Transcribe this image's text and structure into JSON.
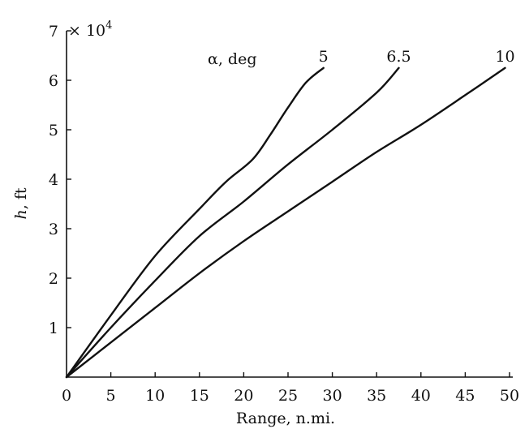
{
  "chart_data": {
    "type": "line",
    "title": "",
    "xlabel": "Range, n.mi.",
    "ylabel_italic": "h",
    "ylabel_rest": ", ft",
    "xlim": [
      0,
      50
    ],
    "ylim": [
      0,
      7
    ],
    "x_ticks": [
      "0",
      "5",
      "10",
      "15",
      "20",
      "25",
      "30",
      "35",
      "40",
      "45",
      "50"
    ],
    "y_ticks": [
      "1",
      "2",
      "3",
      "4",
      "5",
      "6",
      "7"
    ],
    "y_exponent": {
      "base": "× 10",
      "power": "4"
    },
    "series_header": "α, deg",
    "grid": false,
    "series": [
      {
        "name": "5",
        "x": [
          0,
          5,
          10,
          15,
          18,
          21,
          23,
          25,
          27,
          29
        ],
        "y": [
          0,
          1.25,
          2.45,
          3.4,
          3.95,
          4.4,
          4.9,
          5.45,
          5.95,
          6.25
        ]
      },
      {
        "name": "6.5",
        "x": [
          0,
          5,
          10,
          15,
          20,
          25,
          30,
          35,
          37.5
        ],
        "y": [
          0,
          1.0,
          1.95,
          2.85,
          3.55,
          4.3,
          5.0,
          5.75,
          6.25
        ]
      },
      {
        "name": "10",
        "x": [
          0,
          5,
          10,
          15,
          20,
          25,
          30,
          35,
          40,
          45,
          49.5
        ],
        "y": [
          0,
          0.7,
          1.4,
          2.1,
          2.75,
          3.35,
          3.95,
          4.55,
          5.1,
          5.7,
          6.25
        ]
      }
    ]
  }
}
